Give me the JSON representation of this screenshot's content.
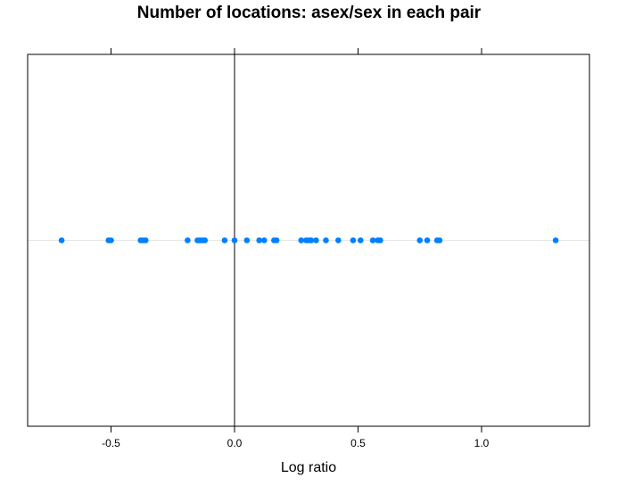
{
  "chart_data": {
    "type": "scatter",
    "title": "Number of locations: asex/sex in each pair",
    "xlabel": "Log ratio",
    "ylabel": "",
    "xlim": [
      -0.85,
      1.45
    ],
    "x_ticks": [
      -0.5,
      0.0,
      0.5,
      1.0
    ],
    "x_tick_labels": [
      "-0.5",
      "0.0",
      "0.5",
      "1.0"
    ],
    "reference_line_x": 0.0,
    "grid": false,
    "point_color": "#0080ff",
    "reference_line_color": "#e6e6e6",
    "values": [
      -0.7,
      -0.51,
      -0.5,
      -0.38,
      -0.37,
      -0.36,
      -0.19,
      -0.15,
      -0.14,
      -0.13,
      -0.12,
      -0.04,
      0.0,
      0.05,
      0.1,
      0.12,
      0.16,
      0.17,
      0.27,
      0.29,
      0.3,
      0.31,
      0.33,
      0.37,
      0.42,
      0.48,
      0.51,
      0.56,
      0.58,
      0.59,
      0.75,
      0.78,
      0.82,
      0.83,
      1.3
    ]
  }
}
